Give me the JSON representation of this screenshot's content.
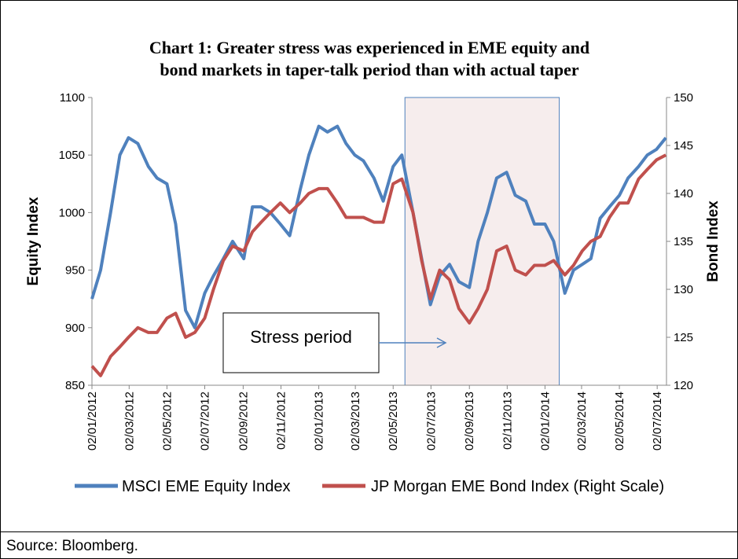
{
  "chart_data": {
    "type": "line",
    "title": [
      "Chart 1: Greater stress was experienced in EME equity and",
      "bond markets in taper-talk period than with actual taper"
    ],
    "ylabel": "Equity Index",
    "y2label": "Bond Index",
    "xlim": [
      "02/01/2012",
      "17/07/2014"
    ],
    "xticks": [
      "02/01/2012",
      "02/03/2012",
      "02/05/2012",
      "02/07/2012",
      "02/09/2012",
      "02/11/2012",
      "02/01/2013",
      "02/03/2013",
      "02/05/2013",
      "02/07/2013",
      "02/09/2013",
      "02/11/2013",
      "02/01/2014",
      "02/03/2014",
      "02/05/2014",
      "02/07/2014"
    ],
    "ylim": [
      850,
      1100
    ],
    "yticks": [
      850,
      900,
      950,
      1000,
      1050,
      1100
    ],
    "y2lim": [
      120,
      150
    ],
    "y2ticks": [
      120,
      125,
      130,
      135,
      140,
      145,
      150
    ],
    "legend": "bottom",
    "x": [
      "02/01/2012",
      "16/01/2012",
      "01/02/2012",
      "16/02/2012",
      "01/03/2012",
      "16/03/2012",
      "02/04/2012",
      "16/04/2012",
      "02/05/2012",
      "16/05/2012",
      "01/06/2012",
      "16/06/2012",
      "02/07/2012",
      "16/07/2012",
      "01/08/2012",
      "16/08/2012",
      "03/09/2012",
      "17/09/2012",
      "01/10/2012",
      "16/10/2012",
      "01/11/2012",
      "16/11/2012",
      "03/12/2012",
      "17/12/2012",
      "02/01/2013",
      "16/01/2013",
      "01/02/2013",
      "15/02/2013",
      "01/03/2013",
      "15/03/2013",
      "01/04/2013",
      "16/04/2013",
      "02/05/2013",
      "16/05/2013",
      "03/06/2013",
      "17/06/2013",
      "01/07/2013",
      "16/07/2013",
      "01/08/2013",
      "16/08/2013",
      "02/09/2013",
      "16/09/2013",
      "01/10/2013",
      "16/10/2013",
      "01/11/2013",
      "15/11/2013",
      "02/12/2013",
      "16/12/2013",
      "02/01/2014",
      "16/01/2014",
      "03/02/2014",
      "17/02/2014",
      "03/03/2014",
      "17/03/2014",
      "01/04/2014",
      "16/04/2014",
      "02/05/2014",
      "16/05/2014",
      "02/06/2014",
      "16/06/2014",
      "01/07/2014",
      "16/07/2014"
    ],
    "series": [
      {
        "name": "MSCI EME Equity Index",
        "color": "#4f81bd",
        "axis": "y",
        "values": [
          925,
          950,
          1000,
          1050,
          1065,
          1060,
          1040,
          1030,
          1025,
          990,
          915,
          900,
          930,
          945,
          960,
          975,
          960,
          1005,
          1005,
          1000,
          990,
          980,
          1020,
          1050,
          1075,
          1070,
          1075,
          1060,
          1050,
          1045,
          1030,
          1010,
          1040,
          1050,
          1000,
          960,
          920,
          945,
          955,
          940,
          935,
          975,
          1000,
          1030,
          1035,
          1015,
          1010,
          990,
          990,
          975,
          930,
          950,
          955,
          960,
          995,
          1005,
          1015,
          1030,
          1040,
          1050,
          1055,
          1065
        ]
      },
      {
        "name": "JP Morgan EME Bond Index (Right Scale)",
        "color": "#c0504d",
        "axis": "y2",
        "values": [
          122,
          121,
          123,
          124,
          125,
          126,
          125.5,
          125.5,
          127,
          127.5,
          125,
          125.5,
          127,
          130,
          133,
          134.5,
          134,
          136,
          137,
          138,
          139,
          138,
          139,
          140,
          140.5,
          140.5,
          139,
          137.5,
          137.5,
          137.5,
          137,
          137,
          141,
          141.5,
          138,
          133,
          129,
          132,
          131,
          128,
          126.5,
          128,
          130,
          134,
          134.5,
          132,
          131.5,
          132.5,
          132.5,
          133,
          131.5,
          132.5,
          134,
          135,
          135.5,
          137.5,
          139,
          139,
          141.5,
          142.5,
          143.5,
          144
        ]
      }
    ],
    "annotation": {
      "text": "Stress period",
      "start": "21/05/2013",
      "end": "25/01/2014"
    }
  },
  "footer": "Source: Bloomberg."
}
